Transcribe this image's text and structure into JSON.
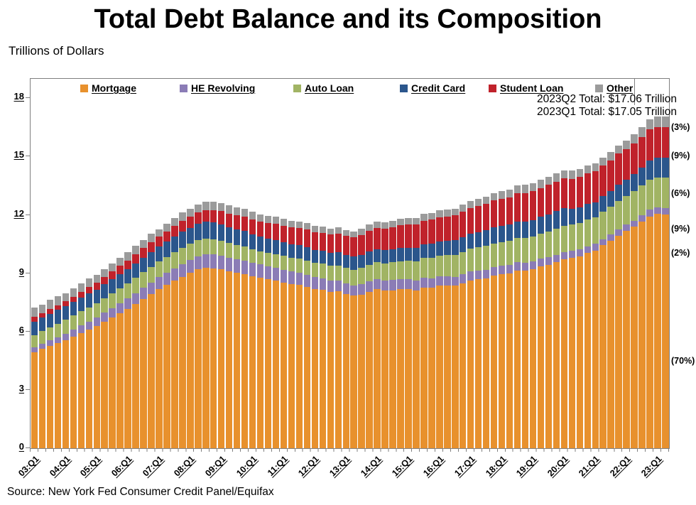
{
  "title": "Total Debt Balance and its Composition",
  "y_axis_label": "Trillions of Dollars",
  "source": "Source: New York Fed Consumer Credit Panel/Equifax",
  "annotations": {
    "line1": "2023Q2 Total: $17.06 Trillion",
    "line2": "2023Q1 Total: $17.05 Trillion"
  },
  "chart_data": {
    "type": "bar",
    "stacked": true,
    "title": "Total Debt Balance and its Composition",
    "ylabel": "Trillions of Dollars",
    "ylim": [
      0,
      19
    ],
    "yticks": [
      0,
      3,
      6,
      9,
      12,
      15,
      18
    ],
    "grid": false,
    "legend_position": "top",
    "x_tick_every": 4,
    "x": [
      "03:Q1",
      "03:Q2",
      "03:Q3",
      "03:Q4",
      "04:Q1",
      "04:Q2",
      "04:Q3",
      "04:Q4",
      "05:Q1",
      "05:Q2",
      "05:Q3",
      "05:Q4",
      "06:Q1",
      "06:Q2",
      "06:Q3",
      "06:Q4",
      "07:Q1",
      "07:Q2",
      "07:Q3",
      "07:Q4",
      "08:Q1",
      "08:Q2",
      "08:Q3",
      "08:Q4",
      "09:Q1",
      "09:Q2",
      "09:Q3",
      "09:Q4",
      "10:Q1",
      "10:Q2",
      "10:Q3",
      "10:Q4",
      "11:Q1",
      "11:Q2",
      "11:Q3",
      "11:Q4",
      "12:Q1",
      "12:Q2",
      "12:Q3",
      "12:Q4",
      "13:Q1",
      "13:Q2",
      "13:Q3",
      "13:Q4",
      "14:Q1",
      "14:Q2",
      "14:Q3",
      "14:Q4",
      "15:Q1",
      "15:Q2",
      "15:Q3",
      "15:Q4",
      "16:Q1",
      "16:Q2",
      "16:Q3",
      "16:Q4",
      "17:Q1",
      "17:Q2",
      "17:Q3",
      "17:Q4",
      "18:Q1",
      "18:Q2",
      "18:Q3",
      "18:Q4",
      "19:Q1",
      "19:Q2",
      "19:Q3",
      "19:Q4",
      "20:Q1",
      "20:Q2",
      "20:Q3",
      "20:Q4",
      "21:Q1",
      "21:Q2",
      "21:Q3",
      "21:Q4",
      "22:Q1",
      "22:Q2",
      "22:Q3",
      "22:Q4",
      "23:Q1",
      "23:Q2"
    ],
    "series": [
      {
        "name": "Mortgage",
        "color": "#E8912D",
        "share_label": "(70%)",
        "values": [
          4.94,
          5.1,
          5.26,
          5.41,
          5.57,
          5.75,
          5.93,
          6.1,
          6.28,
          6.5,
          6.72,
          6.94,
          7.16,
          7.42,
          7.68,
          7.93,
          8.19,
          8.4,
          8.61,
          8.82,
          9.03,
          9.2,
          9.29,
          9.26,
          9.21,
          9.1,
          9.02,
          8.95,
          8.85,
          8.77,
          8.69,
          8.61,
          8.53,
          8.44,
          8.4,
          8.31,
          8.19,
          8.15,
          8.03,
          8.06,
          7.93,
          7.84,
          7.9,
          8.05,
          8.17,
          8.1,
          8.13,
          8.17,
          8.17,
          8.12,
          8.26,
          8.25,
          8.37,
          8.36,
          8.35,
          8.48,
          8.63,
          8.69,
          8.74,
          8.88,
          8.94,
          9.0,
          9.14,
          9.12,
          9.2,
          9.34,
          9.44,
          9.56,
          9.71,
          9.78,
          9.86,
          10.04,
          10.16,
          10.44,
          10.67,
          10.93,
          11.18,
          11.39,
          11.67,
          11.92,
          12.04,
          12.01
        ]
      },
      {
        "name": "HE Revolving",
        "color": "#8B7CB6",
        "share_label": "(2%)",
        "values": [
          0.24,
          0.26,
          0.28,
          0.3,
          0.33,
          0.36,
          0.39,
          0.42,
          0.44,
          0.47,
          0.49,
          0.52,
          0.54,
          0.56,
          0.58,
          0.6,
          0.62,
          0.63,
          0.65,
          0.66,
          0.67,
          0.68,
          0.69,
          0.7,
          0.71,
          0.71,
          0.71,
          0.7,
          0.69,
          0.68,
          0.67,
          0.67,
          0.66,
          0.65,
          0.64,
          0.62,
          0.61,
          0.59,
          0.58,
          0.56,
          0.55,
          0.54,
          0.54,
          0.53,
          0.53,
          0.52,
          0.52,
          0.51,
          0.51,
          0.5,
          0.5,
          0.49,
          0.49,
          0.48,
          0.47,
          0.47,
          0.46,
          0.45,
          0.45,
          0.44,
          0.44,
          0.43,
          0.42,
          0.41,
          0.41,
          0.4,
          0.4,
          0.39,
          0.39,
          0.38,
          0.37,
          0.35,
          0.35,
          0.32,
          0.32,
          0.32,
          0.32,
          0.32,
          0.32,
          0.34,
          0.34,
          0.34
        ]
      },
      {
        "name": "Auto Loan",
        "color": "#A1B464",
        "share_label": "(9%)",
        "values": [
          0.64,
          0.66,
          0.69,
          0.7,
          0.7,
          0.71,
          0.72,
          0.73,
          0.73,
          0.74,
          0.76,
          0.78,
          0.78,
          0.79,
          0.8,
          0.8,
          0.79,
          0.8,
          0.81,
          0.82,
          0.81,
          0.81,
          0.81,
          0.79,
          0.76,
          0.74,
          0.73,
          0.71,
          0.7,
          0.69,
          0.7,
          0.71,
          0.7,
          0.71,
          0.72,
          0.73,
          0.73,
          0.75,
          0.77,
          0.78,
          0.79,
          0.81,
          0.83,
          0.86,
          0.86,
          0.89,
          0.92,
          0.94,
          0.96,
          0.99,
          1.03,
          1.05,
          1.06,
          1.1,
          1.12,
          1.14,
          1.17,
          1.19,
          1.21,
          1.22,
          1.23,
          1.24,
          1.27,
          1.27,
          1.28,
          1.3,
          1.32,
          1.33,
          1.35,
          1.34,
          1.36,
          1.37,
          1.38,
          1.42,
          1.44,
          1.46,
          1.47,
          1.5,
          1.52,
          1.55,
          1.56,
          1.58
        ]
      },
      {
        "name": "Credit Card",
        "color": "#2B568C",
        "share_label": "(6%)",
        "values": [
          0.69,
          0.69,
          0.69,
          0.7,
          0.7,
          0.7,
          0.7,
          0.72,
          0.71,
          0.72,
          0.73,
          0.73,
          0.74,
          0.74,
          0.75,
          0.77,
          0.77,
          0.79,
          0.81,
          0.84,
          0.82,
          0.84,
          0.85,
          0.87,
          0.84,
          0.83,
          0.81,
          0.81,
          0.77,
          0.74,
          0.73,
          0.73,
          0.7,
          0.69,
          0.69,
          0.7,
          0.68,
          0.67,
          0.67,
          0.68,
          0.66,
          0.66,
          0.67,
          0.68,
          0.66,
          0.67,
          0.68,
          0.7,
          0.68,
          0.7,
          0.71,
          0.73,
          0.71,
          0.73,
          0.75,
          0.78,
          0.76,
          0.78,
          0.81,
          0.83,
          0.82,
          0.83,
          0.84,
          0.87,
          0.85,
          0.87,
          0.88,
          0.93,
          0.89,
          0.82,
          0.81,
          0.82,
          0.77,
          0.79,
          0.8,
          0.86,
          0.84,
          0.89,
          0.93,
          0.99,
          0.99,
          1.03
        ]
      },
      {
        "name": "Student Loan",
        "color": "#C0222B",
        "share_label": "(9%)",
        "values": [
          0.24,
          0.25,
          0.25,
          0.25,
          0.26,
          0.28,
          0.31,
          0.33,
          0.36,
          0.38,
          0.4,
          0.42,
          0.44,
          0.46,
          0.48,
          0.5,
          0.51,
          0.53,
          0.55,
          0.57,
          0.59,
          0.6,
          0.61,
          0.64,
          0.67,
          0.69,
          0.71,
          0.73,
          0.76,
          0.78,
          0.8,
          0.82,
          0.84,
          0.86,
          0.88,
          0.89,
          0.9,
          0.91,
          0.94,
          0.97,
          0.99,
          0.99,
          1.03,
          1.08,
          1.11,
          1.12,
          1.13,
          1.16,
          1.19,
          1.19,
          1.2,
          1.23,
          1.25,
          1.26,
          1.28,
          1.31,
          1.34,
          1.34,
          1.36,
          1.38,
          1.41,
          1.41,
          1.44,
          1.46,
          1.49,
          1.48,
          1.5,
          1.51,
          1.54,
          1.54,
          1.55,
          1.56,
          1.58,
          1.57,
          1.58,
          1.58,
          1.59,
          1.59,
          1.57,
          1.6,
          1.6,
          1.57
        ]
      },
      {
        "name": "Other",
        "color": "#9B9B9B",
        "share_label": "(3%)",
        "values": [
          0.48,
          0.44,
          0.47,
          0.45,
          0.42,
          0.43,
          0.44,
          0.43,
          0.4,
          0.4,
          0.41,
          0.42,
          0.43,
          0.43,
          0.42,
          0.43,
          0.39,
          0.4,
          0.41,
          0.42,
          0.41,
          0.42,
          0.43,
          0.43,
          0.43,
          0.42,
          0.41,
          0.4,
          0.39,
          0.38,
          0.37,
          0.36,
          0.36,
          0.35,
          0.34,
          0.33,
          0.32,
          0.32,
          0.31,
          0.31,
          0.3,
          0.31,
          0.31,
          0.31,
          0.32,
          0.33,
          0.33,
          0.33,
          0.34,
          0.34,
          0.35,
          0.35,
          0.36,
          0.36,
          0.36,
          0.37,
          0.37,
          0.38,
          0.38,
          0.38,
          0.39,
          0.39,
          0.4,
          0.41,
          0.41,
          0.41,
          0.42,
          0.42,
          0.42,
          0.41,
          0.41,
          0.42,
          0.42,
          0.42,
          0.43,
          0.43,
          0.44,
          0.47,
          0.49,
          0.51,
          0.52,
          0.53
        ]
      }
    ]
  }
}
